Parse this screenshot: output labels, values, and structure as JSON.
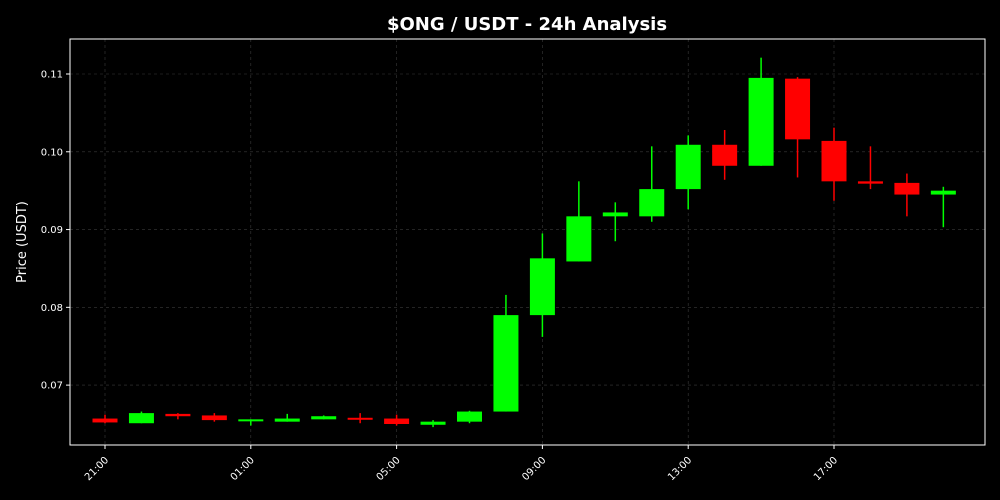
{
  "chart_data": {
    "type": "candlestick",
    "title": "$ONG / USDT - 24h Analysis",
    "ylabel": "Price (USDT)",
    "xlabel": "",
    "ylim": [
      0.0623,
      0.1145
    ],
    "y_ticks": [
      0.07,
      0.08,
      0.09,
      0.1,
      0.11
    ],
    "y_tick_labels": [
      "0.07",
      "0.08",
      "0.09",
      "0.10",
      "0.11"
    ],
    "x_tick_labels": [
      "21:00",
      "01:00",
      "05:00",
      "09:00",
      "13:00",
      "17:00"
    ],
    "x_tick_indices": [
      0,
      4,
      8,
      12,
      16,
      20
    ],
    "grid": true,
    "up_color": "#00ff00",
    "down_color": "#ff0000",
    "candles": [
      {
        "o": 0.0657,
        "h": 0.0662,
        "l": 0.0651,
        "c": 0.0652
      },
      {
        "o": 0.0651,
        "h": 0.0666,
        "l": 0.0651,
        "c": 0.0664
      },
      {
        "o": 0.0663,
        "h": 0.0664,
        "l": 0.0656,
        "c": 0.066
      },
      {
        "o": 0.0661,
        "h": 0.0664,
        "l": 0.0653,
        "c": 0.0655
      },
      {
        "o": 0.0656,
        "h": 0.0656,
        "l": 0.0648,
        "c": 0.0656
      },
      {
        "o": 0.0653,
        "h": 0.0663,
        "l": 0.0653,
        "c": 0.0657
      },
      {
        "o": 0.0656,
        "h": 0.0661,
        "l": 0.0656,
        "c": 0.066
      },
      {
        "o": 0.0658,
        "h": 0.0664,
        "l": 0.0651,
        "c": 0.0657
      },
      {
        "o": 0.0657,
        "h": 0.0662,
        "l": 0.0648,
        "c": 0.065
      },
      {
        "o": 0.0649,
        "h": 0.0655,
        "l": 0.0646,
        "c": 0.0653
      },
      {
        "o": 0.0653,
        "h": 0.0667,
        "l": 0.0651,
        "c": 0.0666
      },
      {
        "o": 0.0666,
        "h": 0.0816,
        "l": 0.0666,
        "c": 0.079
      },
      {
        "o": 0.079,
        "h": 0.0895,
        "l": 0.0762,
        "c": 0.0863
      },
      {
        "o": 0.0859,
        "h": 0.0962,
        "l": 0.0859,
        "c": 0.0917
      },
      {
        "o": 0.0917,
        "h": 0.0935,
        "l": 0.0885,
        "c": 0.0922
      },
      {
        "o": 0.0917,
        "h": 0.1007,
        "l": 0.091,
        "c": 0.0952
      },
      {
        "o": 0.0952,
        "h": 0.1021,
        "l": 0.0926,
        "c": 0.1009
      },
      {
        "o": 0.1009,
        "h": 0.1028,
        "l": 0.0964,
        "c": 0.0982
      },
      {
        "o": 0.0982,
        "h": 0.1121,
        "l": 0.0982,
        "c": 0.1095
      },
      {
        "o": 0.1094,
        "h": 0.1096,
        "l": 0.0967,
        "c": 0.1016
      },
      {
        "o": 0.1014,
        "h": 0.1031,
        "l": 0.0937,
        "c": 0.0962
      },
      {
        "o": 0.0962,
        "h": 0.1007,
        "l": 0.0952,
        "c": 0.0959
      },
      {
        "o": 0.096,
        "h": 0.0972,
        "l": 0.0917,
        "c": 0.0945
      },
      {
        "o": 0.0945,
        "h": 0.0955,
        "l": 0.0903,
        "c": 0.095
      }
    ]
  }
}
